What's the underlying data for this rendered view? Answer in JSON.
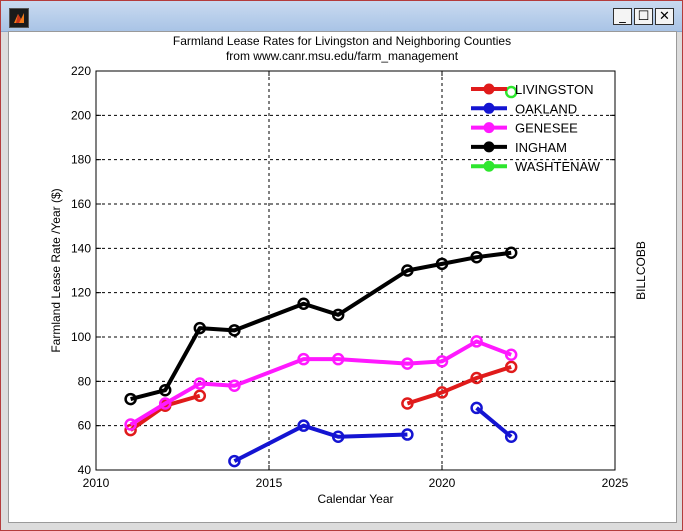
{
  "window": {
    "title": ""
  },
  "chart_data": {
    "type": "line",
    "title": "Farmland Lease Rates for Livingston and Neighboring Counties",
    "subtitle": "from www.canr.msu.edu/farm_management",
    "xlabel": "Calendar Year",
    "ylabel": "Farmland Lease Rate /Year ($)",
    "right_label": "BILLCOBB",
    "xlim": [
      2010,
      2025
    ],
    "ylim": [
      40,
      220
    ],
    "xticks": [
      2010,
      2015,
      2020,
      2025
    ],
    "yticks": [
      40,
      60,
      80,
      100,
      120,
      140,
      160,
      180,
      200,
      220
    ],
    "grid": true,
    "legend_position": "top-right",
    "series": [
      {
        "name": "LIVINGSTON",
        "color": "#e01b1b",
        "segments": [
          [
            [
              2011,
              58
            ],
            [
              2012,
              69
            ],
            [
              2013,
              73.5
            ]
          ],
          [
            [
              2019,
              70
            ],
            [
              2020,
              75
            ],
            [
              2021,
              81.5
            ],
            [
              2022,
              86.5
            ]
          ]
        ]
      },
      {
        "name": "OAKLAND",
        "color": "#1414d2",
        "segments": [
          [
            [
              2014,
              44
            ],
            [
              2016,
              60
            ],
            [
              2017,
              55
            ],
            [
              2019,
              56
            ]
          ],
          [
            [
              2021,
              68
            ],
            [
              2022,
              55
            ]
          ]
        ]
      },
      {
        "name": "GENESEE",
        "color": "#ff19ff",
        "segments": [
          [
            [
              2011,
              60.5
            ],
            [
              2012,
              70
            ],
            [
              2013,
              79
            ],
            [
              2014,
              78
            ],
            [
              2016,
              90
            ],
            [
              2017,
              90
            ],
            [
              2019,
              88
            ],
            [
              2020,
              89
            ],
            [
              2021,
              98
            ],
            [
              2022,
              92
            ]
          ]
        ]
      },
      {
        "name": "INGHAM",
        "color": "#000000",
        "segments": [
          [
            [
              2011,
              72
            ],
            [
              2012,
              76
            ],
            [
              2013,
              104
            ],
            [
              2014,
              103
            ],
            [
              2016,
              115
            ],
            [
              2017,
              110
            ],
            [
              2019,
              130
            ],
            [
              2020,
              133
            ],
            [
              2021,
              136
            ],
            [
              2022,
              138
            ]
          ]
        ]
      },
      {
        "name": "WASHTENAW",
        "color": "#2ee62e",
        "segments": [
          [
            [
              2022,
              210.5
            ]
          ]
        ]
      }
    ]
  }
}
